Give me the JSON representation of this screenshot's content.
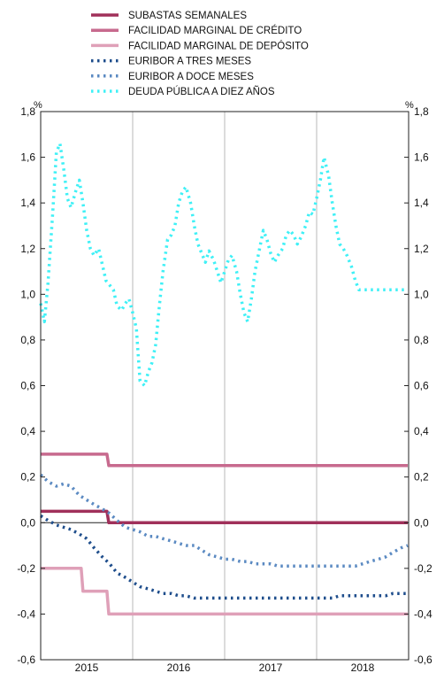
{
  "chart_data": {
    "type": "line",
    "unit_left": "%",
    "unit_right": "%",
    "ylim": [
      -0.6,
      1.8
    ],
    "y_ticks": [
      "-0,6",
      "-0,4",
      "-0,2",
      "0,0",
      "0,2",
      "0,4",
      "0,6",
      "0,8",
      "1,0",
      "1,2",
      "1,4",
      "1,6",
      "1,8"
    ],
    "x_labels": [
      "2015",
      "2016",
      "2017",
      "2018"
    ],
    "grid": "vertical year separators",
    "legend_placement": "top-left",
    "series": [
      {
        "name": "SUBASTAS SEMANALES",
        "color": "#a0305a",
        "style": "solid",
        "x": [
          2015.0,
          2015.72,
          2015.74,
          2018.99
        ],
        "values": [
          0.05,
          0.05,
          0.0,
          0.0
        ]
      },
      {
        "name": "FACILIDAD MARGINAL DE CRÉDITO",
        "color": "#c76a8e",
        "style": "solid",
        "x": [
          2015.0,
          2015.72,
          2015.74,
          2018.99
        ],
        "values": [
          0.3,
          0.3,
          0.25,
          0.25
        ]
      },
      {
        "name": "FACILIDAD MARGINAL DE DEPÓSITO",
        "color": "#dfa0b8",
        "style": "solid",
        "x": [
          2015.0,
          2015.44,
          2015.46,
          2015.72,
          2015.74,
          2018.99
        ],
        "values": [
          -0.2,
          -0.2,
          -0.3,
          -0.3,
          -0.4,
          -0.4
        ]
      },
      {
        "name": "EURIBOR A TRES MESES",
        "color": "#1f4e8c",
        "style": "dotted",
        "x": [
          2015.0,
          2015.08,
          2015.17,
          2015.25,
          2015.33,
          2015.42,
          2015.5,
          2015.58,
          2015.67,
          2015.75,
          2015.83,
          2015.92,
          2016.0,
          2016.08,
          2016.17,
          2016.25,
          2016.33,
          2016.42,
          2016.5,
          2016.58,
          2016.67,
          2016.75,
          2016.83,
          2016.92,
          2017.0,
          2017.08,
          2017.17,
          2017.25,
          2017.33,
          2017.42,
          2017.5,
          2017.58,
          2017.67,
          2017.75,
          2017.83,
          2017.92,
          2018.0,
          2018.08,
          2018.17,
          2018.25,
          2018.33,
          2018.42,
          2018.5,
          2018.58,
          2018.67,
          2018.75,
          2018.83,
          2018.92,
          2018.99
        ],
        "values": [
          0.03,
          0.01,
          -0.01,
          -0.02,
          -0.03,
          -0.05,
          -0.07,
          -0.11,
          -0.15,
          -0.18,
          -0.22,
          -0.24,
          -0.26,
          -0.28,
          -0.29,
          -0.3,
          -0.31,
          -0.31,
          -0.32,
          -0.32,
          -0.33,
          -0.33,
          -0.33,
          -0.33,
          -0.33,
          -0.33,
          -0.33,
          -0.33,
          -0.33,
          -0.33,
          -0.33,
          -0.33,
          -0.33,
          -0.33,
          -0.33,
          -0.33,
          -0.33,
          -0.33,
          -0.33,
          -0.32,
          -0.32,
          -0.32,
          -0.32,
          -0.32,
          -0.32,
          -0.32,
          -0.31,
          -0.31,
          -0.31
        ]
      },
      {
        "name": "EURIBOR A DOCE MESES",
        "color": "#5b8ac2",
        "style": "dotted",
        "x": [
          2015.0,
          2015.08,
          2015.17,
          2015.25,
          2015.33,
          2015.42,
          2015.5,
          2015.58,
          2015.67,
          2015.75,
          2015.83,
          2015.92,
          2016.0,
          2016.08,
          2016.17,
          2016.25,
          2016.33,
          2016.42,
          2016.5,
          2016.58,
          2016.67,
          2016.75,
          2016.83,
          2016.92,
          2017.0,
          2017.08,
          2017.17,
          2017.25,
          2017.33,
          2017.42,
          2017.5,
          2017.58,
          2017.67,
          2017.75,
          2017.83,
          2017.92,
          2018.0,
          2018.08,
          2018.17,
          2018.25,
          2018.33,
          2018.42,
          2018.5,
          2018.58,
          2018.67,
          2018.75,
          2018.83,
          2018.92,
          2018.99
        ],
        "values": [
          0.21,
          0.18,
          0.16,
          0.17,
          0.16,
          0.12,
          0.1,
          0.08,
          0.06,
          0.04,
          0.01,
          -0.02,
          -0.03,
          -0.04,
          -0.06,
          -0.06,
          -0.07,
          -0.08,
          -0.09,
          -0.1,
          -0.1,
          -0.12,
          -0.14,
          -0.15,
          -0.16,
          -0.16,
          -0.17,
          -0.17,
          -0.18,
          -0.18,
          -0.18,
          -0.19,
          -0.19,
          -0.19,
          -0.19,
          -0.19,
          -0.19,
          -0.19,
          -0.19,
          -0.19,
          -0.19,
          -0.19,
          -0.18,
          -0.17,
          -0.16,
          -0.15,
          -0.13,
          -0.11,
          -0.1
        ]
      },
      {
        "name": "DEUDA PÚBLICA A DIEZ AÑOS",
        "color": "#3ff0f6",
        "style": "dotted",
        "x": [
          2015.0,
          2015.04,
          2015.08,
          2015.13,
          2015.17,
          2015.21,
          2015.25,
          2015.29,
          2015.33,
          2015.38,
          2015.42,
          2015.46,
          2015.5,
          2015.54,
          2015.58,
          2015.63,
          2015.67,
          2015.71,
          2015.75,
          2015.79,
          2015.83,
          2015.88,
          2015.92,
          2015.96,
          2016.0,
          2016.04,
          2016.08,
          2016.13,
          2016.17,
          2016.21,
          2016.25,
          2016.29,
          2016.33,
          2016.38,
          2016.42,
          2016.46,
          2016.5,
          2016.54,
          2016.58,
          2016.63,
          2016.67,
          2016.71,
          2016.75,
          2016.79,
          2016.83,
          2016.88,
          2016.92,
          2016.96,
          2017.0,
          2017.04,
          2017.08,
          2017.13,
          2017.17,
          2017.21,
          2017.25,
          2017.29,
          2017.33,
          2017.38,
          2017.42,
          2017.46,
          2017.5,
          2017.54,
          2017.58,
          2017.63,
          2017.67,
          2017.71,
          2017.75,
          2017.79,
          2017.83,
          2017.88,
          2017.92,
          2017.96,
          2018.0,
          2018.04,
          2018.08,
          2018.13,
          2018.17,
          2018.21,
          2018.25,
          2018.29,
          2018.33,
          2018.38,
          2018.42,
          2018.46,
          2018.5,
          2018.54,
          2018.58,
          2018.63,
          2018.67,
          2018.71,
          2018.75,
          2018.79,
          2018.83,
          2018.88,
          2018.92,
          2018.96,
          2018.99
        ],
        "values": [
          0.96,
          0.88,
          1.05,
          1.35,
          1.62,
          1.66,
          1.55,
          1.42,
          1.38,
          1.45,
          1.5,
          1.4,
          1.28,
          1.2,
          1.17,
          1.2,
          1.13,
          1.06,
          1.04,
          1.02,
          0.95,
          0.93,
          0.96,
          0.98,
          0.92,
          0.85,
          0.62,
          0.6,
          0.66,
          0.7,
          0.78,
          0.95,
          1.1,
          1.24,
          1.26,
          1.3,
          1.4,
          1.45,
          1.47,
          1.4,
          1.3,
          1.22,
          1.18,
          1.14,
          1.19,
          1.15,
          1.1,
          1.05,
          1.1,
          1.15,
          1.17,
          1.1,
          1.0,
          0.92,
          0.88,
          0.98,
          1.1,
          1.2,
          1.28,
          1.24,
          1.18,
          1.14,
          1.17,
          1.2,
          1.26,
          1.28,
          1.26,
          1.22,
          1.25,
          1.3,
          1.36,
          1.35,
          1.42,
          1.5,
          1.6,
          1.52,
          1.4,
          1.3,
          1.22,
          1.2,
          1.17,
          1.12,
          1.06,
          1.02,
          1.02,
          1.02,
          1.02,
          1.02,
          1.02,
          1.02,
          1.02,
          1.02,
          1.02,
          1.02,
          1.02,
          1.02,
          1.02
        ]
      }
    ]
  }
}
